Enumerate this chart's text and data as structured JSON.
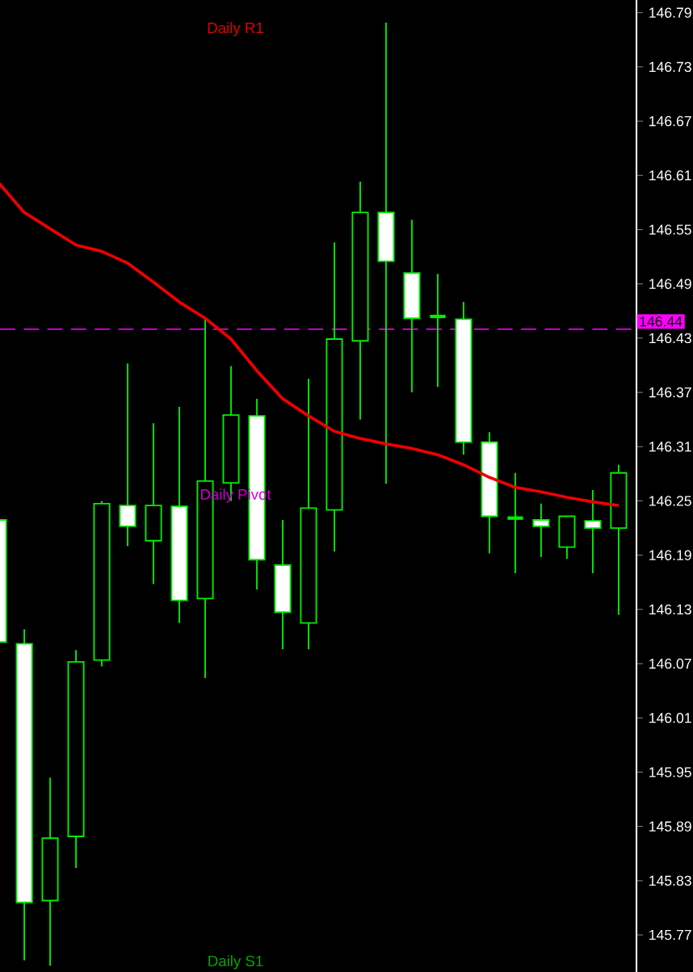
{
  "chart_data": {
    "type": "candlestick",
    "categories": [
      null,
      null,
      null,
      null,
      null,
      null,
      null,
      null,
      null,
      null,
      null,
      null,
      null,
      null,
      null,
      null,
      null,
      null,
      null,
      null,
      null,
      null,
      null,
      null,
      null
    ],
    "ohlc": [
      [
        146.229,
        146.229,
        146.094,
        146.094
      ],
      [
        146.092,
        146.108,
        145.742,
        145.806
      ],
      [
        145.808,
        145.944,
        145.736,
        145.877
      ],
      [
        145.879,
        146.085,
        145.844,
        146.072
      ],
      [
        146.074,
        146.25,
        146.067,
        146.247
      ],
      [
        146.245,
        146.402,
        146.2,
        146.222
      ],
      [
        146.206,
        146.336,
        146.158,
        146.245
      ],
      [
        146.244,
        146.354,
        146.115,
        146.14
      ],
      [
        146.142,
        146.452,
        146.054,
        146.272
      ],
      [
        146.27,
        146.399,
        146.25,
        146.345
      ],
      [
        146.344,
        146.363,
        146.152,
        146.185
      ],
      [
        146.179,
        146.229,
        146.086,
        146.127
      ],
      [
        146.115,
        146.385,
        146.086,
        146.242
      ],
      [
        146.24,
        146.536,
        146.194,
        146.429
      ],
      [
        146.427,
        146.603,
        146.34,
        146.569
      ],
      [
        146.569,
        146.779,
        146.269,
        146.515
      ],
      [
        146.502,
        146.561,
        146.37,
        146.452
      ],
      [
        146.454,
        146.501,
        146.376,
        146.454
      ],
      [
        146.451,
        146.47,
        146.301,
        146.315
      ],
      [
        146.315,
        146.326,
        146.192,
        146.233
      ],
      [
        146.231,
        146.281,
        146.17,
        146.231
      ],
      [
        146.229,
        146.247,
        146.188,
        146.222
      ],
      [
        146.199,
        146.233,
        146.186,
        146.233
      ],
      [
        146.228,
        146.262,
        146.17,
        146.22
      ],
      [
        146.22,
        146.29,
        146.124,
        146.281
      ]
    ],
    "series": [
      {
        "type": "line",
        "color": "#ee0000",
        "values": [
          146.602,
          146.569,
          146.551,
          146.533,
          146.526,
          146.513,
          146.492,
          146.47,
          146.452,
          146.429,
          146.394,
          146.363,
          146.344,
          146.327,
          146.319,
          146.313,
          146.308,
          146.301,
          146.29,
          146.276,
          146.265,
          146.26,
          146.254,
          146.249,
          146.245
        ]
      }
    ],
    "ylim": [
      145.729,
      146.804
    ],
    "yticks": [
      146.79,
      146.73,
      146.67,
      146.61,
      146.55,
      146.49,
      146.43,
      146.37,
      146.31,
      146.25,
      146.19,
      146.13,
      146.07,
      146.01,
      145.95,
      145.89,
      145.83,
      145.77
    ],
    "tick_labels": "y",
    "marker": "none",
    "ref_lines": [
      {
        "axis": "y",
        "value": 146.44,
        "label": "146.44",
        "color": "#ff00ff",
        "line_style": "dashed"
      }
    ],
    "annotations": [
      "Daily R1",
      "Daily Pivot",
      "Daily S1"
    ]
  }
}
